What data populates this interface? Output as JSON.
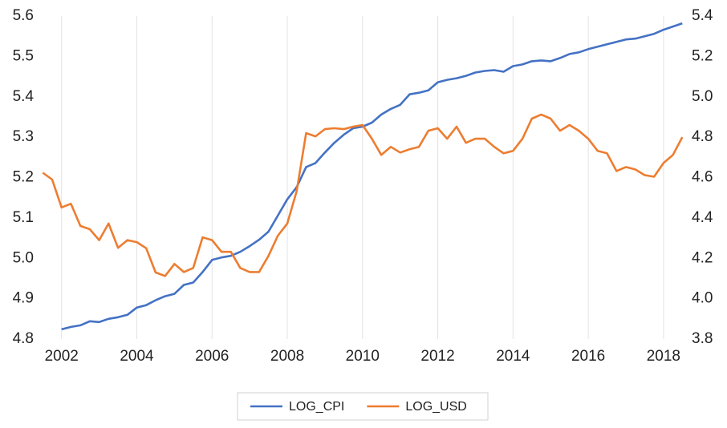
{
  "chart_data": {
    "type": "line",
    "x": [
      2001.5,
      2001.75,
      2002,
      2002.25,
      2002.5,
      2002.75,
      2003,
      2003.25,
      2003.5,
      2003.75,
      2004,
      2004.25,
      2004.5,
      2004.75,
      2005,
      2005.25,
      2005.5,
      2005.75,
      2006,
      2006.25,
      2006.5,
      2006.75,
      2007,
      2007.25,
      2007.5,
      2007.75,
      2008,
      2008.25,
      2008.5,
      2008.75,
      2009,
      2009.25,
      2009.5,
      2009.75,
      2010,
      2010.25,
      2010.5,
      2010.75,
      2011,
      2011.25,
      2011.5,
      2011.75,
      2012,
      2012.25,
      2012.5,
      2012.75,
      2013,
      2013.25,
      2013.5,
      2013.75,
      2014,
      2014.25,
      2014.5,
      2014.75,
      2015,
      2015.25,
      2015.5,
      2015.75,
      2016,
      2016.25,
      2016.5,
      2016.75,
      2017,
      2017.25,
      2017.5,
      2017.75,
      2018,
      2018.25,
      2018.5
    ],
    "xlim": [
      2001.43,
      2018.6
    ],
    "xticks": [
      2002,
      2004,
      2006,
      2008,
      2010,
      2012,
      2014,
      2016,
      2018
    ],
    "ylim": [
      4.8,
      5.6
    ],
    "yticks": [
      4.8,
      4.9,
      {
        "value": 5,
        "label": "5.0"
      },
      5.1,
      5.2,
      5.3,
      5.4,
      5.5,
      5.6
    ],
    "y2lim": [
      3.8,
      5.4
    ],
    "y2ticks": [
      3.8,
      {
        "value": 4,
        "label": "4.0"
      },
      4.2,
      4.4,
      4.6,
      4.8,
      {
        "value": 5,
        "label": "5.0"
      },
      5.2,
      5.4
    ],
    "grid": true,
    "legend": "bottom",
    "series": [
      {
        "name": "LOG_CPI",
        "color": "#4472c4",
        "axis": "y",
        "values": [
          null,
          null,
          4.824,
          4.83,
          4.834,
          4.844,
          4.842,
          4.85,
          4.854,
          4.86,
          4.878,
          4.884,
          4.896,
          4.906,
          4.912,
          4.934,
          4.94,
          4.966,
          4.996,
          5.002,
          5.006,
          5.016,
          5.03,
          5.046,
          5.066,
          5.106,
          5.146,
          5.176,
          5.226,
          5.236,
          5.262,
          5.286,
          5.306,
          5.322,
          5.326,
          5.336,
          5.356,
          5.37,
          5.38,
          5.406,
          5.41,
          5.416,
          5.436,
          5.442,
          5.446,
          5.452,
          5.46,
          5.464,
          5.466,
          5.462,
          5.476,
          5.48,
          5.488,
          5.49,
          5.488,
          5.496,
          5.506,
          5.51,
          5.518,
          5.524,
          5.53,
          5.536,
          5.542,
          5.544,
          5.55,
          5.556,
          5.566,
          5.574,
          5.582
        ]
      },
      {
        "name": "LOG_USD",
        "color": "#ed7d31",
        "axis": "y2",
        "values": [
          4.624,
          4.59,
          4.452,
          4.47,
          4.36,
          4.344,
          4.29,
          4.372,
          4.252,
          4.29,
          4.28,
          4.25,
          4.13,
          4.112,
          4.172,
          4.132,
          4.152,
          4.304,
          4.29,
          4.232,
          4.232,
          4.152,
          4.132,
          4.132,
          4.212,
          4.312,
          4.372,
          4.532,
          4.82,
          4.804,
          4.84,
          4.844,
          4.84,
          4.852,
          4.86,
          4.792,
          4.712,
          4.752,
          4.724,
          4.74,
          4.752,
          4.832,
          4.844,
          4.792,
          4.852,
          4.772,
          4.792,
          4.792,
          4.752,
          4.72,
          4.732,
          4.792,
          4.892,
          4.912,
          4.892,
          4.832,
          4.86,
          4.832,
          4.792,
          4.732,
          4.72,
          4.632,
          4.652,
          4.64,
          4.612,
          4.604,
          4.672,
          4.712,
          4.8
        ]
      }
    ]
  }
}
